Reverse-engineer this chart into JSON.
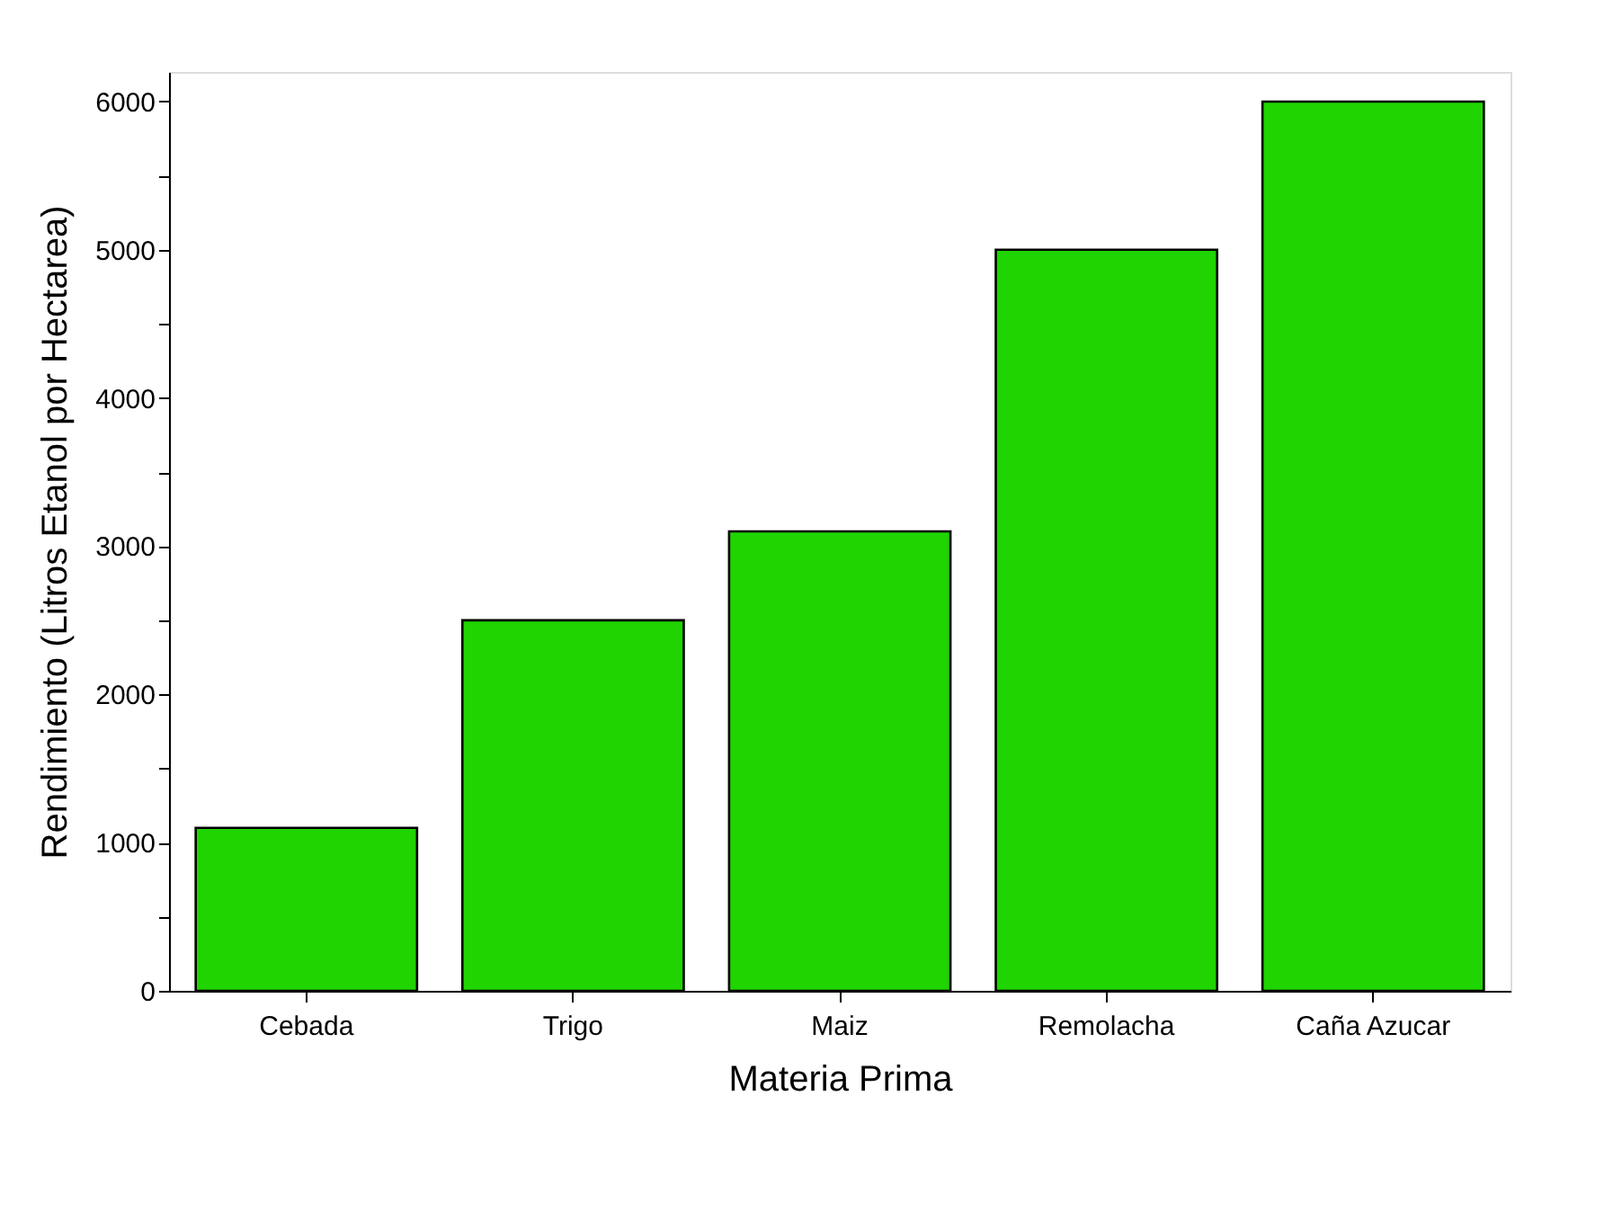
{
  "chart_data": {
    "type": "bar",
    "xlabel": "Materia Prima",
    "ylabel": "Rendimiento (Litros Etanol por Hectarea)",
    "categories": [
      "Cebada",
      "Trigo",
      "Maiz",
      "Remolacha",
      "Caña Azucar"
    ],
    "values": [
      1100,
      2500,
      3100,
      5000,
      6000
    ],
    "color": "#1fd400",
    "ylim": [
      0,
      6200
    ],
    "yticks": [
      0,
      {
        "value": 500,
        "label": null
      },
      1000,
      {
        "value": 1500,
        "label": null
      },
      2000,
      {
        "value": 2500,
        "label": null
      },
      3000,
      {
        "value": 3500,
        "label": null
      },
      4000,
      {
        "value": 4500,
        "label": null
      },
      5000,
      {
        "value": 5500,
        "label": null
      },
      6000
    ],
    "grid": false
  }
}
